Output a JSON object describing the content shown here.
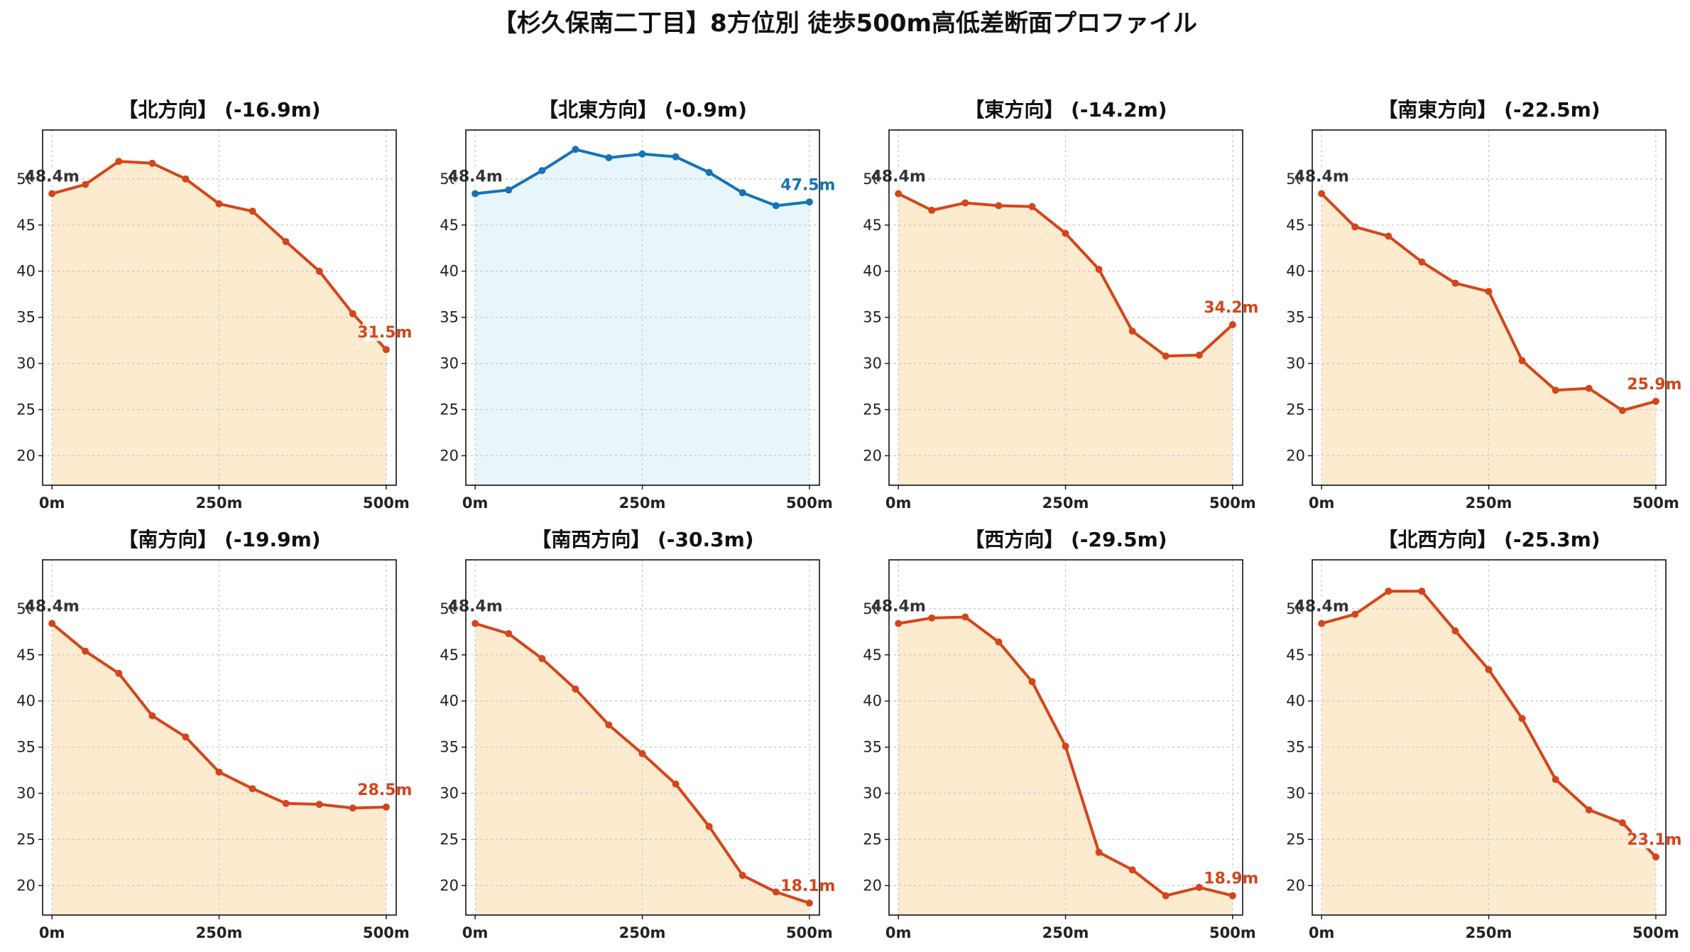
{
  "title": "【杉久保南二丁目】8方位別 徒歩500m高低差断面プロファイル",
  "colors": {
    "down_line": "#d4451a",
    "down_fill": "#fdebd0",
    "flat_line": "#1573b6",
    "flat_fill": "#e8f6fb",
    "start_label": "#333333"
  },
  "chart_data": [
    {
      "type": "area",
      "title": "【北方向】 (-16.9m)",
      "x": [
        0,
        50,
        100,
        150,
        200,
        250,
        300,
        350,
        400,
        450,
        500
      ],
      "y": [
        48.4,
        49.4,
        51.9,
        51.7,
        50.0,
        47.3,
        46.5,
        43.2,
        40.0,
        35.4,
        31.5
      ],
      "start_label": "48.4m",
      "end_label": "31.5m",
      "trend": "down",
      "ylim": [
        16.8,
        55.3
      ],
      "xlim": [
        -14,
        515
      ],
      "yticks": [
        20,
        25,
        30,
        35,
        40,
        45,
        50
      ],
      "ytick_labels": [
        "20",
        "25",
        "30",
        "35",
        "40",
        "45",
        "50"
      ],
      "xticks": [
        0,
        250,
        500
      ],
      "xtick_labels": [
        "0m",
        "250m",
        "500m"
      ],
      "grid": true
    },
    {
      "type": "area",
      "title": "【北東方向】 (-0.9m)",
      "x": [
        0,
        50,
        100,
        150,
        200,
        250,
        300,
        350,
        400,
        450,
        500
      ],
      "y": [
        48.4,
        48.8,
        50.9,
        53.2,
        52.3,
        52.7,
        52.4,
        50.7,
        48.5,
        47.1,
        47.5
      ],
      "start_label": "48.4m",
      "end_label": "47.5m",
      "trend": "flat",
      "ylim": [
        16.8,
        55.3
      ],
      "xlim": [
        -14,
        515
      ],
      "yticks": [
        20,
        25,
        30,
        35,
        40,
        45,
        50
      ],
      "ytick_labels": [
        "20",
        "25",
        "30",
        "35",
        "40",
        "45",
        "50"
      ],
      "xticks": [
        0,
        250,
        500
      ],
      "xtick_labels": [
        "0m",
        "250m",
        "500m"
      ],
      "grid": true
    },
    {
      "type": "area",
      "title": "【東方向】 (-14.2m)",
      "x": [
        0,
        50,
        100,
        150,
        200,
        250,
        300,
        350,
        400,
        450,
        500
      ],
      "y": [
        48.4,
        46.6,
        47.4,
        47.1,
        47.0,
        44.1,
        40.2,
        33.5,
        30.8,
        30.9,
        34.2
      ],
      "start_label": "48.4m",
      "end_label": "34.2m",
      "trend": "down",
      "ylim": [
        16.8,
        55.3
      ],
      "xlim": [
        -14,
        515
      ],
      "yticks": [
        20,
        25,
        30,
        35,
        40,
        45,
        50
      ],
      "ytick_labels": [
        "20",
        "25",
        "30",
        "35",
        "40",
        "45",
        "50"
      ],
      "xticks": [
        0,
        250,
        500
      ],
      "xtick_labels": [
        "0m",
        "250m",
        "500m"
      ],
      "grid": true
    },
    {
      "type": "area",
      "title": "【南東方向】 (-22.5m)",
      "x": [
        0,
        50,
        100,
        150,
        200,
        250,
        300,
        350,
        400,
        450,
        500
      ],
      "y": [
        48.4,
        44.8,
        43.8,
        41.0,
        38.7,
        37.8,
        30.3,
        27.1,
        27.3,
        24.9,
        25.9
      ],
      "start_label": "48.4m",
      "end_label": "25.9m",
      "trend": "down",
      "ylim": [
        16.8,
        55.3
      ],
      "xlim": [
        -14,
        515
      ],
      "yticks": [
        20,
        25,
        30,
        35,
        40,
        45,
        50
      ],
      "ytick_labels": [
        "20",
        "25",
        "30",
        "35",
        "40",
        "45",
        "50"
      ],
      "xticks": [
        0,
        250,
        500
      ],
      "xtick_labels": [
        "0m",
        "250m",
        "500m"
      ],
      "grid": true
    },
    {
      "type": "area",
      "title": "【南方向】 (-19.9m)",
      "x": [
        0,
        50,
        100,
        150,
        200,
        250,
        300,
        350,
        400,
        450,
        500
      ],
      "y": [
        48.4,
        45.4,
        43.0,
        38.4,
        36.1,
        32.3,
        30.5,
        28.9,
        28.8,
        28.4,
        28.5
      ],
      "start_label": "48.4m",
      "end_label": "28.5m",
      "trend": "down",
      "ylim": [
        16.8,
        55.3
      ],
      "xlim": [
        -14,
        515
      ],
      "yticks": [
        20,
        25,
        30,
        35,
        40,
        45,
        50
      ],
      "ytick_labels": [
        "20",
        "25",
        "30",
        "35",
        "40",
        "45",
        "50"
      ],
      "xticks": [
        0,
        250,
        500
      ],
      "xtick_labels": [
        "0m",
        "250m",
        "500m"
      ],
      "grid": true
    },
    {
      "type": "area",
      "title": "【南西方向】 (-30.3m)",
      "x": [
        0,
        50,
        100,
        150,
        200,
        250,
        300,
        350,
        400,
        450,
        500
      ],
      "y": [
        48.4,
        47.3,
        44.6,
        41.3,
        37.4,
        34.3,
        31.0,
        26.4,
        21.1,
        19.3,
        18.1
      ],
      "start_label": "48.4m",
      "end_label": "18.1m",
      "trend": "down",
      "ylim": [
        16.8,
        55.3
      ],
      "xlim": [
        -14,
        515
      ],
      "yticks": [
        20,
        25,
        30,
        35,
        40,
        45,
        50
      ],
      "ytick_labels": [
        "20",
        "25",
        "30",
        "35",
        "40",
        "45",
        "50"
      ],
      "xticks": [
        0,
        250,
        500
      ],
      "xtick_labels": [
        "0m",
        "250m",
        "500m"
      ],
      "grid": true
    },
    {
      "type": "area",
      "title": "【西方向】 (-29.5m)",
      "x": [
        0,
        50,
        100,
        150,
        200,
        250,
        300,
        350,
        400,
        450,
        500
      ],
      "y": [
        48.4,
        49.0,
        49.1,
        46.4,
        42.1,
        35.1,
        23.6,
        21.7,
        18.9,
        19.8,
        18.9
      ],
      "start_label": "48.4m",
      "end_label": "18.9m",
      "trend": "down",
      "ylim": [
        16.8,
        55.3
      ],
      "xlim": [
        -14,
        515
      ],
      "yticks": [
        20,
        25,
        30,
        35,
        40,
        45,
        50
      ],
      "ytick_labels": [
        "20",
        "25",
        "30",
        "35",
        "40",
        "45",
        "50"
      ],
      "xticks": [
        0,
        250,
        500
      ],
      "xtick_labels": [
        "0m",
        "250m",
        "500m"
      ],
      "grid": true
    },
    {
      "type": "area",
      "title": "【北西方向】 (-25.3m)",
      "x": [
        0,
        50,
        100,
        150,
        200,
        250,
        300,
        350,
        400,
        450,
        500
      ],
      "y": [
        48.4,
        49.4,
        51.9,
        51.9,
        47.6,
        43.4,
        38.1,
        31.5,
        28.2,
        26.8,
        23.1
      ],
      "start_label": "48.4m",
      "end_label": "23.1m",
      "trend": "down",
      "ylim": [
        16.8,
        55.3
      ],
      "xlim": [
        -14,
        515
      ],
      "yticks": [
        20,
        25,
        30,
        35,
        40,
        45,
        50
      ],
      "ytick_labels": [
        "20",
        "25",
        "30",
        "35",
        "40",
        "45",
        "50"
      ],
      "xticks": [
        0,
        250,
        500
      ],
      "xtick_labels": [
        "0m",
        "250m",
        "500m"
      ],
      "grid": true
    }
  ]
}
